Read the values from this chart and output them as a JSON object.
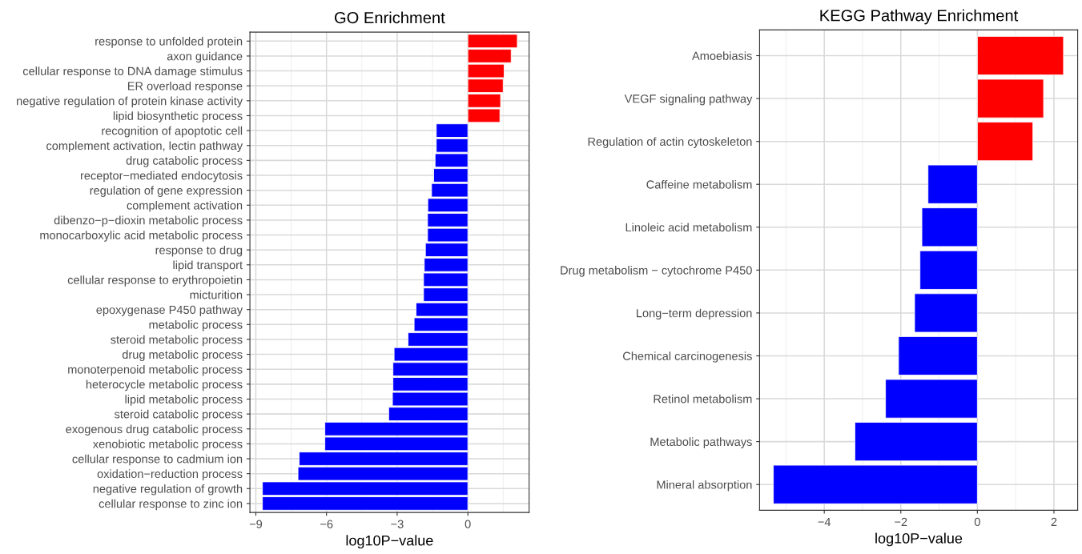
{
  "chart_data": [
    {
      "type": "bar",
      "orientation": "horizontal",
      "title": "GO Enrichment",
      "xlabel": "log10P−value",
      "categories": [
        "response to unfolded protein",
        "axon guidance",
        "cellular response to DNA damage stimulus",
        "ER overload response",
        "negative regulation of protein kinase activity",
        "lipid biosynthetic process",
        "recognition of apoptotic cell",
        "complement activation, lectin pathway",
        "drug catabolic process",
        "receptor−mediated endocytosis",
        "regulation of gene expression",
        "complement activation",
        "dibenzo−p−dioxin metabolic process",
        "monocarboxylic acid metabolic process",
        "response to drug",
        "lipid transport",
        "cellular response to erythropoietin",
        "micturition",
        "epoxygenase P450 pathway",
        "metabolic process",
        "steroid metabolic process",
        "drug metabolic process",
        "monoterpenoid metabolic process",
        "heterocycle metabolic process",
        "lipid metabolic process",
        "steroid catabolic process",
        "exogenous drug catabolic process",
        "xenobiotic metabolic process",
        "cellular response to cadmium ion",
        "oxidation−reduction process",
        "negative regulation of growth",
        "cellular response to zinc ion"
      ],
      "values": [
        2.1,
        1.84,
        1.54,
        1.5,
        1.39,
        1.36,
        -1.34,
        -1.34,
        -1.39,
        -1.45,
        -1.54,
        -1.7,
        -1.71,
        -1.71,
        -1.8,
        -1.85,
        -1.88,
        -1.88,
        -2.2,
        -2.28,
        -2.54,
        -3.13,
        -3.18,
        -3.18,
        -3.2,
        -3.36,
        -6.07,
        -6.07,
        -7.16,
        -7.21,
        -8.72,
        -8.72
      ],
      "colors": [
        "#ff0000",
        "#ff0000",
        "#ff0000",
        "#ff0000",
        "#ff0000",
        "#ff0000",
        "#0000ff",
        "#0000ff",
        "#0000ff",
        "#0000ff",
        "#0000ff",
        "#0000ff",
        "#0000ff",
        "#0000ff",
        "#0000ff",
        "#0000ff",
        "#0000ff",
        "#0000ff",
        "#0000ff",
        "#0000ff",
        "#0000ff",
        "#0000ff",
        "#0000ff",
        "#0000ff",
        "#0000ff",
        "#0000ff",
        "#0000ff",
        "#0000ff",
        "#0000ff",
        "#0000ff",
        "#0000ff",
        "#0000ff"
      ],
      "xlim": [
        -9.25,
        2.6
      ],
      "xticks": [
        {
          "value": -9,
          "label": "−9"
        },
        {
          "value": -6,
          "label": "−6"
        },
        {
          "value": -3,
          "label": "−3"
        },
        0
      ],
      "grid": true
    },
    {
      "type": "bar",
      "orientation": "horizontal",
      "title": "KEGG Pathway Enrichment",
      "xlabel": "log10P−value",
      "categories": [
        "Amoebiasis",
        "VEGF signaling pathway",
        "Regulation of actin cytoskeleton",
        "Caffeine metabolism",
        "Linoleic acid metabolism",
        "Drug metabolism − cytochrome P450",
        "Long−term depression",
        "Chemical carcinogenesis",
        "Retinol metabolism",
        "Metabolic pathways",
        "Mineral absorption"
      ],
      "values": [
        2.25,
        1.73,
        1.45,
        -1.29,
        -1.45,
        -1.5,
        -1.64,
        -2.06,
        -2.4,
        -3.2,
        -5.33
      ],
      "colors": [
        "#ff0000",
        "#ff0000",
        "#ff0000",
        "#0000ff",
        "#0000ff",
        "#0000ff",
        "#0000ff",
        "#0000ff",
        "#0000ff",
        "#0000ff",
        "#0000ff"
      ],
      "xlim": [
        -5.69,
        2.62
      ],
      "xticks": [
        {
          "value": -4,
          "label": "−4"
        },
        {
          "value": -2,
          "label": "−2"
        },
        0,
        2
      ],
      "grid": true
    }
  ]
}
